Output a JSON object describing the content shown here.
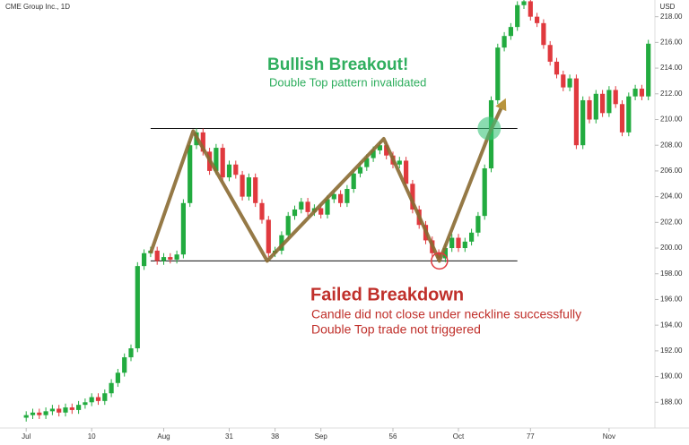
{
  "chart_data": {
    "type": "candlestick",
    "title": "CME Group Inc., 1D",
    "currency": "USD",
    "up_color": "#22ab3f",
    "down_color": "#e0393e",
    "xlim": [
      -4,
      96
    ],
    "ylim": [
      186,
      219.3
    ],
    "xticks": [
      {
        "value": 0,
        "label": "Jul"
      },
      10,
      {
        "value": 21,
        "label": "Aug"
      },
      31,
      38,
      {
        "value": 45,
        "label": "Sep"
      },
      56,
      {
        "value": 66,
        "label": "Oct"
      },
      77,
      {
        "value": 89,
        "label": "Nov"
      }
    ],
    "yticks": [
      {
        "value": 188,
        "label": "188.00"
      },
      {
        "value": 190,
        "label": "190.00"
      },
      {
        "value": 192,
        "label": "192.00"
      },
      {
        "value": 194,
        "label": "194.00"
      },
      {
        "value": 196,
        "label": "196.00"
      },
      {
        "value": 198,
        "label": "198.00"
      },
      {
        "value": 200,
        "label": "200.00"
      },
      {
        "value": 202,
        "label": "202.00"
      },
      {
        "value": 204,
        "label": "204.00"
      },
      {
        "value": 206,
        "label": "206.00"
      },
      {
        "value": 208,
        "label": "208.00"
      },
      {
        "value": 210,
        "label": "210.00"
      },
      {
        "value": 212,
        "label": "212.00"
      },
      {
        "value": 214,
        "label": "214.00"
      },
      {
        "value": 216,
        "label": "216.00"
      },
      {
        "value": 218,
        "label": "218.00"
      }
    ],
    "open": [
      186.8,
      187.0,
      187.2,
      187.0,
      187.3,
      187.5,
      187.2,
      187.6,
      187.4,
      187.8,
      188.0,
      188.4,
      188.1,
      188.7,
      189.5,
      190.3,
      191.5,
      192.2,
      198.6,
      199.6,
      199.8,
      199.0,
      199.3,
      199.1,
      199.5,
      203.5,
      208.0,
      209.0,
      207.5,
      206.0,
      207.8,
      205.5,
      206.5,
      205.7,
      204.0,
      205.5,
      203.5,
      202.2,
      199.6,
      199.8,
      201.0,
      202.5,
      203.0,
      203.6,
      202.8,
      203.1,
      202.6,
      203.8,
      204.2,
      203.5,
      204.6,
      205.8,
      206.3,
      207.0,
      207.6,
      208.0,
      207.2,
      206.5,
      206.8,
      205.0,
      203.0,
      201.8,
      200.6,
      199.6,
      199.2,
      200.0,
      200.8,
      200.0,
      200.5,
      201.2,
      202.5,
      206.2,
      211.5,
      215.6,
      216.5,
      217.2,
      218.9,
      219.2,
      218.0,
      217.5,
      215.8,
      214.5,
      213.5,
      212.5,
      213.2,
      208.0,
      211.5,
      210.0,
      212.0,
      210.5,
      212.3,
      211.2,
      209.0,
      211.8,
      212.4,
      211.8
    ],
    "high": [
      187.3,
      187.5,
      187.5,
      187.6,
      187.8,
      187.8,
      187.9,
      187.9,
      188.1,
      188.3,
      188.7,
      188.7,
      189.0,
      189.8,
      190.6,
      191.8,
      192.5,
      198.9,
      199.9,
      200.1,
      200.1,
      199.6,
      199.6,
      199.8,
      203.8,
      208.3,
      209.3,
      209.3,
      207.8,
      208.1,
      208.1,
      206.8,
      206.8,
      206.0,
      205.8,
      205.8,
      203.8,
      202.5,
      200.1,
      201.3,
      202.8,
      203.3,
      203.9,
      203.9,
      203.4,
      203.4,
      204.1,
      204.5,
      204.5,
      204.9,
      206.1,
      206.6,
      207.3,
      207.9,
      208.3,
      208.3,
      207.5,
      207.1,
      207.1,
      205.3,
      203.3,
      202.1,
      200.9,
      199.9,
      200.3,
      201.1,
      201.1,
      200.8,
      201.5,
      202.8,
      206.5,
      211.8,
      215.9,
      216.8,
      217.5,
      219.2,
      219.5,
      219.5,
      218.3,
      217.8,
      216.1,
      214.8,
      213.8,
      213.5,
      213.5,
      211.8,
      211.8,
      212.3,
      212.3,
      212.6,
      212.6,
      211.5,
      212.1,
      212.7,
      212.7,
      216.2
    ],
    "low": [
      186.5,
      186.7,
      186.7,
      186.7,
      187.0,
      186.9,
      186.9,
      187.1,
      187.1,
      187.5,
      187.7,
      187.8,
      187.8,
      188.4,
      189.2,
      190.0,
      191.2,
      191.9,
      198.3,
      199.3,
      198.7,
      198.7,
      198.8,
      198.8,
      199.2,
      203.2,
      207.7,
      207.2,
      205.7,
      205.7,
      205.2,
      205.2,
      205.4,
      203.7,
      203.7,
      203.2,
      201.9,
      199.3,
      199.3,
      199.5,
      200.7,
      202.2,
      202.7,
      202.5,
      202.5,
      202.3,
      202.3,
      203.5,
      203.2,
      203.2,
      204.3,
      205.5,
      206.0,
      206.7,
      207.3,
      206.9,
      206.2,
      206.2,
      204.7,
      202.7,
      201.5,
      200.3,
      199.3,
      198.9,
      198.9,
      199.7,
      199.7,
      199.7,
      200.2,
      200.9,
      202.2,
      205.9,
      211.2,
      215.3,
      216.2,
      216.9,
      218.6,
      217.7,
      217.2,
      215.5,
      214.2,
      213.2,
      212.2,
      212.2,
      207.7,
      207.7,
      209.7,
      209.7,
      210.2,
      210.2,
      210.9,
      208.7,
      208.7,
      211.5,
      211.5,
      211.5
    ],
    "close": [
      187.0,
      187.2,
      187.0,
      187.3,
      187.5,
      187.2,
      187.6,
      187.4,
      187.8,
      188.0,
      188.4,
      188.1,
      188.7,
      189.5,
      190.3,
      191.5,
      192.2,
      198.6,
      199.6,
      199.8,
      199.0,
      199.3,
      199.1,
      199.5,
      203.5,
      208.0,
      209.0,
      207.5,
      206.0,
      207.8,
      205.5,
      206.5,
      205.7,
      204.0,
      205.5,
      203.5,
      202.2,
      199.6,
      199.8,
      201.0,
      202.5,
      203.0,
      203.6,
      202.8,
      203.1,
      202.6,
      203.8,
      204.2,
      203.5,
      204.6,
      205.8,
      206.3,
      207.0,
      207.6,
      208.0,
      207.2,
      206.5,
      206.8,
      205.0,
      203.0,
      201.8,
      200.6,
      199.6,
      199.2,
      200.0,
      200.8,
      200.0,
      200.5,
      201.2,
      202.5,
      206.2,
      211.5,
      215.6,
      216.5,
      217.2,
      218.9,
      219.2,
      218.0,
      217.5,
      215.8,
      214.5,
      213.5,
      212.5,
      213.2,
      208.0,
      211.5,
      210.0,
      212.0,
      210.5,
      212.3,
      211.2,
      209.0,
      211.8,
      212.4,
      211.8,
      215.9
    ],
    "levels": [
      {
        "value": 209.3,
        "x": [
          19,
          75
        ]
      },
      {
        "value": 199.0,
        "x": [
          19,
          75
        ]
      }
    ],
    "pattern": {
      "color": "#8a6a32",
      "x": [
        19,
        25.5,
        36.8,
        54.6,
        63.1,
        70.7,
        73
      ],
      "values": [
        199.6,
        209.1,
        199.0,
        208.5,
        199.0,
        208.9,
        211.4
      ]
    },
    "markers": [
      {
        "x": 70.7,
        "value": 209.3,
        "color": "#3cc47c"
      },
      {
        "x": 63.1,
        "value": 199.0,
        "color": "#e0393e"
      }
    ],
    "annotations": [
      {
        "title": "Bullish Breakout!",
        "lines": [
          "Double Top pattern invalidated"
        ],
        "color": "#2fae5e"
      },
      {
        "title": "Failed Breakdown",
        "lines": [
          "Candle did not close under neckline successfully",
          "Double Top trade not triggered"
        ],
        "color": "#c0302b"
      }
    ]
  }
}
